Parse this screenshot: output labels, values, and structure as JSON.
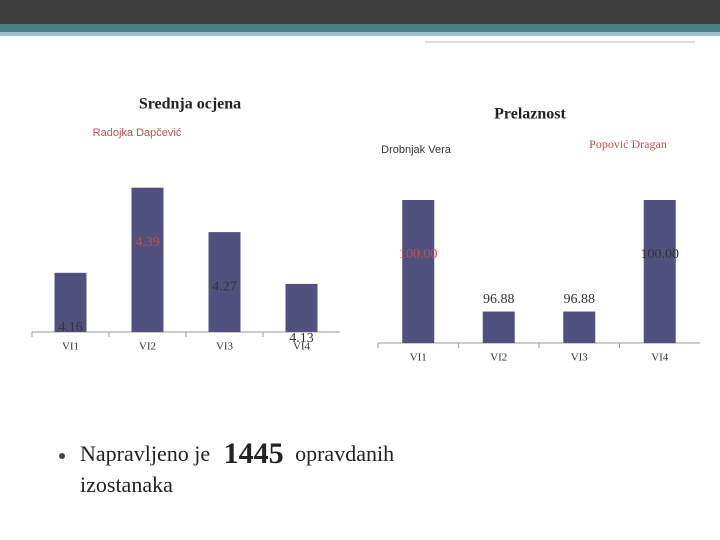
{
  "chart_data": [
    {
      "type": "bar",
      "title": "Srednja ocjena",
      "annotation": "Radojka Dapčević",
      "categories": [
        "VI1",
        "VI2",
        "VI3",
        "VI4"
      ],
      "values": [
        4.16,
        4.39,
        4.27,
        4.13
      ],
      "value_label_colors": [
        "#333333",
        "#c0504d",
        "#333333",
        "#333333"
      ],
      "color": "#51517f",
      "ylim": [
        4,
        4.4
      ]
    },
    {
      "type": "bar",
      "title": "Prelaznost",
      "annotations": [
        "Drobnjak Vera",
        "Popović Dragan"
      ],
      "categories": [
        "VI1",
        "VI2",
        "VI3",
        "VI4"
      ],
      "values": [
        100,
        96.88,
        96.88,
        100
      ],
      "value_labels": [
        "100.00",
        "96.88",
        "96.88",
        "100.00"
      ],
      "value_label_colors": [
        "#c0504d",
        "#333333",
        "#333333",
        "#333333"
      ],
      "color": "#51517f",
      "ylim": [
        96,
        100
      ]
    }
  ],
  "bullet": {
    "before": "Napravljeno je",
    "number": 1445,
    "after": "opravdanih",
    "line2": "izostanaka"
  }
}
